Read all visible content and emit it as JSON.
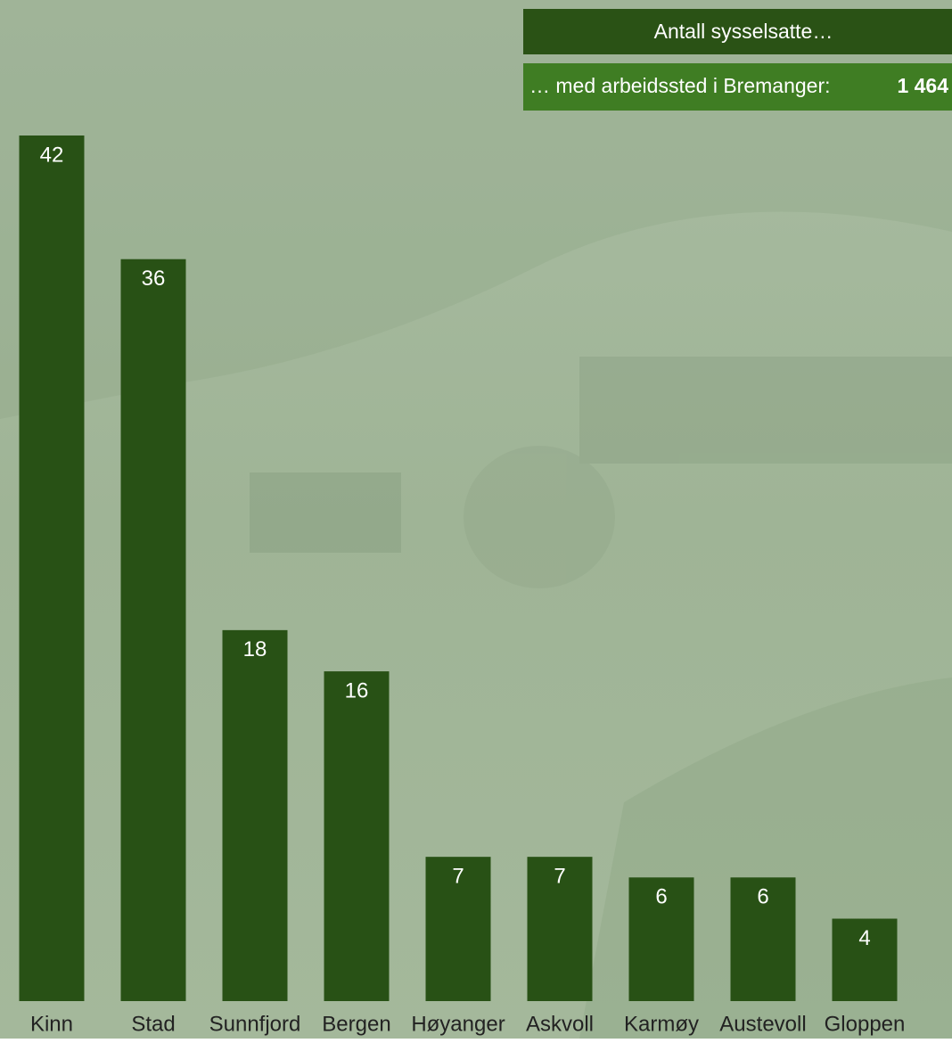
{
  "chart_data": {
    "type": "bar",
    "title": "Antall sysselsatte…",
    "subtitle": "… med arbeidssted i Bremanger:",
    "total": "1 464",
    "categories": [
      "Kinn",
      "Stad",
      "Sunnfjord",
      "Bergen",
      "Høyanger",
      "Askvoll",
      "Karmøy",
      "Austevoll",
      "Gloppen"
    ],
    "values": [
      42,
      36,
      18,
      16,
      7,
      7,
      6,
      6,
      4
    ],
    "color": "#285115"
  }
}
